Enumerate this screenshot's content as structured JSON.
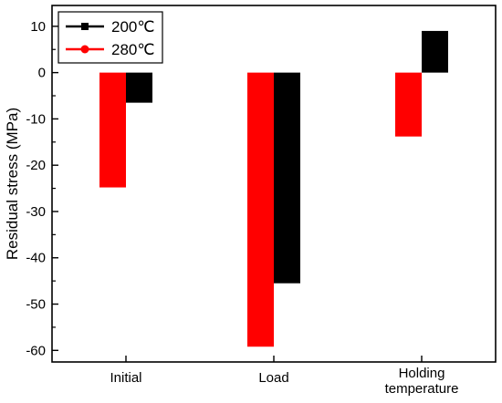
{
  "chart_data": {
    "type": "bar",
    "categories": [
      "Initial",
      "Load",
      "Holding\ntemperature"
    ],
    "series": [
      {
        "name": "280℃",
        "color": "#ff0000",
        "values": [
          -24.8,
          -59.2,
          -13.8
        ]
      },
      {
        "name": "200℃",
        "color": "#000000",
        "values": [
          -6.5,
          -45.5,
          9.0
        ]
      }
    ],
    "legend_order": [
      "200℃",
      "280℃"
    ],
    "ylabel": "Residual stress (MPa)",
    "xlabel": "",
    "ylim": [
      -62.5,
      14.5
    ],
    "yticks": [
      10,
      0,
      -10,
      -20,
      -30,
      -40,
      -50,
      -60
    ],
    "legend_position": "top-left",
    "grid": false
  }
}
